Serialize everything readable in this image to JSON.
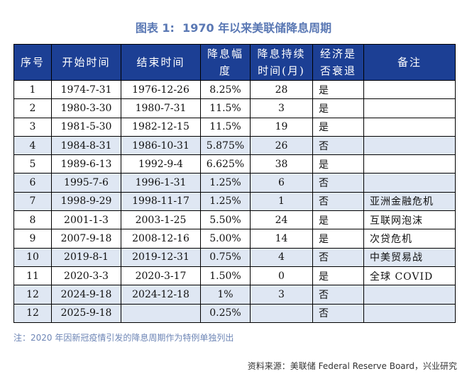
{
  "title": "图表 1:  1970 年以来美联储降息周期",
  "table": {
    "header": [
      "序号",
      "开始时间",
      "结束时间",
      "降息幅度",
      "降息持续时间(月)",
      "经济是否衰退",
      "备注"
    ],
    "rows": [
      [
        1,
        "1974-7-31",
        "1976-12-26",
        "8.25%",
        28,
        "是",
        null
      ],
      [
        2,
        "1980-3-30",
        "1980-7-31",
        "11.5%",
        3,
        "是",
        null
      ],
      [
        3,
        "1981-5-30",
        "1982-12-15",
        "11.5%",
        19,
        "是",
        null
      ],
      [
        4,
        "1984-8-31",
        "1986-10-31",
        "5.875%",
        26,
        "否",
        null
      ],
      [
        5,
        "1989-6-13",
        "1992-9-4",
        "6.625%",
        38,
        "是",
        null
      ],
      [
        6,
        "1995-7-6",
        "1996-1-31",
        "1.25%",
        6,
        "否",
        null
      ],
      [
        7,
        "1998-9-29",
        "1998-11-17",
        "1.25%",
        1,
        "否",
        "亚洲金融危机"
      ],
      [
        8,
        "2001-1-3",
        "2003-1-25",
        "5.50%",
        24,
        "是",
        "互联网泡沫"
      ],
      [
        9,
        "2007-9-18",
        "2008-12-16",
        "5.00%",
        14,
        "是",
        "次贷危机"
      ],
      [
        10,
        "2019-8-1",
        "2019-12-31",
        "0.75%",
        4,
        "否",
        "中美贸易战"
      ],
      [
        11,
        "2020-3-3",
        "2020-3-17",
        "1.50%",
        0,
        "是",
        "全球 COVID"
      ],
      [
        12,
        "2024-9-18",
        "2024-12-18",
        "1%",
        3,
        "否",
        null
      ],
      [
        12,
        "2025-9-18",
        null,
        "0.25%",
        null,
        "否",
        null
      ]
    ]
  },
  "note": "注：2020 年因新冠疫情引发的降息周期作为特例单独列出",
  "source": "资料来源：美联储 Federal Reserve Board，兴业研究"
}
